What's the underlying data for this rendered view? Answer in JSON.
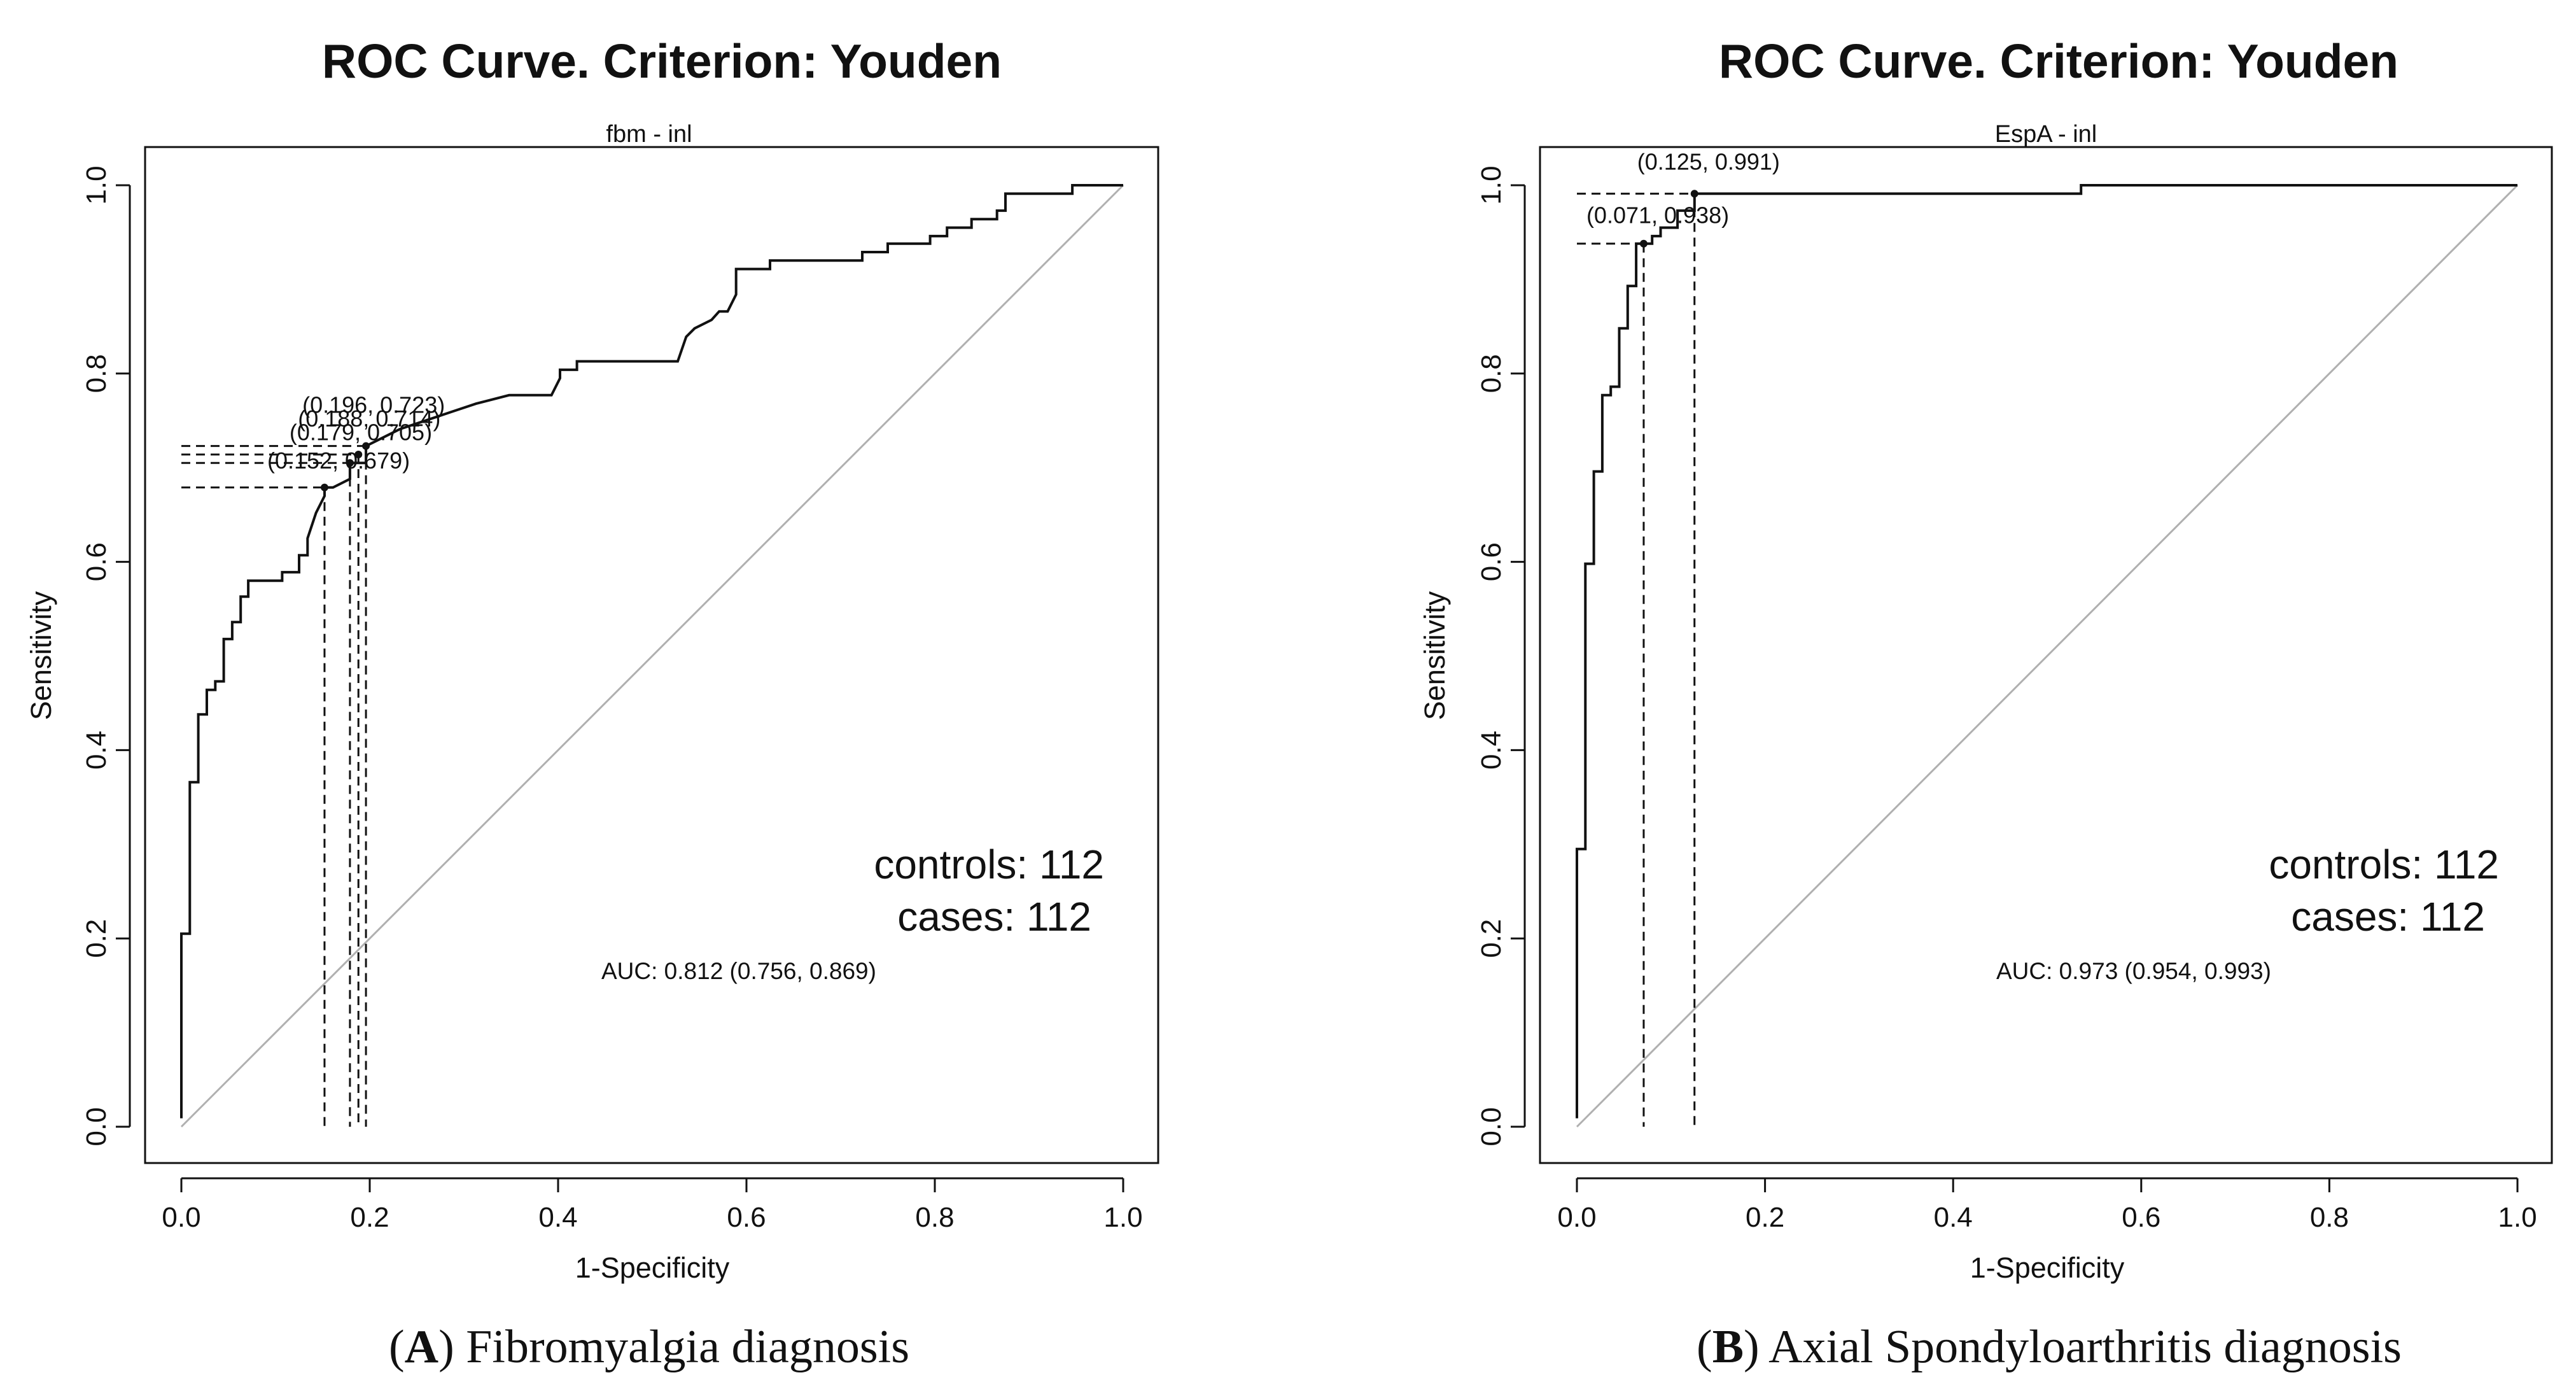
{
  "chart_data": [
    {
      "type": "line",
      "panel": "A",
      "title": "ROC Curve. Criterion: Youden",
      "subtitle": "fbm - inl",
      "xlabel": "1-Specificity",
      "ylabel": "Sensitivity",
      "xlim": [
        0,
        1
      ],
      "ylim": [
        0,
        1
      ],
      "xticks": [
        "0.0",
        "0.2",
        "0.4",
        "0.6",
        "0.8",
        "1.0"
      ],
      "yticks": [
        "0.0",
        "0.2",
        "0.4",
        "0.6",
        "0.8",
        "1.0"
      ],
      "roc": {
        "x": [
          0.0,
          0.0,
          0.009,
          0.009,
          0.018,
          0.018,
          0.027,
          0.027,
          0.036,
          0.036,
          0.045,
          0.045,
          0.054,
          0.054,
          0.063,
          0.063,
          0.071,
          0.071,
          0.107,
          0.107,
          0.125,
          0.125,
          0.134,
          0.134,
          0.143,
          0.152,
          0.152,
          0.161,
          0.179,
          0.179,
          0.196,
          0.196,
          0.214,
          0.232,
          0.259,
          0.286,
          0.313,
          0.348,
          0.348,
          0.393,
          0.402,
          0.402,
          0.42,
          0.42,
          0.527,
          0.536,
          0.545,
          0.563,
          0.571,
          0.58,
          0.589,
          0.589,
          0.625,
          0.625,
          0.723,
          0.723,
          0.75,
          0.75,
          0.795,
          0.795,
          0.813,
          0.813,
          0.839,
          0.839,
          0.866,
          0.866,
          0.875,
          0.875,
          0.946,
          0.946,
          1.0
        ],
        "y": [
          0.009,
          0.205,
          0.205,
          0.366,
          0.366,
          0.438,
          0.438,
          0.464,
          0.464,
          0.473,
          0.473,
          0.518,
          0.518,
          0.536,
          0.536,
          0.563,
          0.563,
          0.58,
          0.58,
          0.589,
          0.589,
          0.607,
          0.607,
          0.625,
          0.652,
          0.67,
          0.679,
          0.679,
          0.688,
          0.705,
          0.705,
          0.723,
          0.732,
          0.741,
          0.75,
          0.759,
          0.768,
          0.777,
          0.777,
          0.777,
          0.795,
          0.804,
          0.804,
          0.813,
          0.813,
          0.839,
          0.848,
          0.857,
          0.866,
          0.866,
          0.884,
          0.911,
          0.911,
          0.92,
          0.92,
          0.929,
          0.929,
          0.938,
          0.938,
          0.946,
          0.946,
          0.955,
          0.955,
          0.964,
          0.964,
          0.973,
          0.973,
          0.991,
          0.991,
          1.0,
          1.0
        ]
      },
      "thresholds": [
        {
          "x": 0.152,
          "y": 0.679,
          "label": "(0.152, 0.679)"
        },
        {
          "x": 0.179,
          "y": 0.705,
          "label": "(0.179, 0.705)"
        },
        {
          "x": 0.188,
          "y": 0.714,
          "label": "(0.188, 0.714)"
        },
        {
          "x": 0.196,
          "y": 0.723,
          "label": "(0.196, 0.723)"
        }
      ],
      "legend": {
        "controls": "controls: 112",
        "cases": "cases: 112"
      },
      "auc": "AUC: 0.812 (0.756, 0.869)",
      "caption": {
        "letter": "A",
        "text": "Fibromyalgia diagnosis"
      }
    },
    {
      "type": "line",
      "panel": "B",
      "title": "ROC Curve. Criterion: Youden",
      "subtitle": "EspA - inl",
      "xlabel": "1-Specificity",
      "ylabel": "Sensitivity",
      "xlim": [
        0,
        1
      ],
      "ylim": [
        0,
        1
      ],
      "xticks": [
        "0.0",
        "0.2",
        "0.4",
        "0.6",
        "0.8",
        "1.0"
      ],
      "yticks": [
        "0.0",
        "0.2",
        "0.4",
        "0.6",
        "0.8",
        "1.0"
      ],
      "roc": {
        "x": [
          0.0,
          0.0,
          0.009,
          0.009,
          0.018,
          0.018,
          0.027,
          0.027,
          0.036,
          0.036,
          0.045,
          0.045,
          0.054,
          0.054,
          0.063,
          0.063,
          0.071,
          0.071,
          0.08,
          0.08,
          0.089,
          0.089,
          0.107,
          0.107,
          0.125,
          0.125,
          0.536,
          0.536,
          1.0
        ],
        "y": [
          0.009,
          0.295,
          0.295,
          0.598,
          0.598,
          0.696,
          0.696,
          0.777,
          0.777,
          0.786,
          0.786,
          0.848,
          0.848,
          0.893,
          0.893,
          0.938,
          0.938,
          0.938,
          0.938,
          0.946,
          0.946,
          0.955,
          0.955,
          0.973,
          0.973,
          0.991,
          0.991,
          1.0,
          1.0
        ]
      },
      "thresholds": [
        {
          "x": 0.071,
          "y": 0.938,
          "label": "(0.071, 0.938)"
        },
        {
          "x": 0.125,
          "y": 0.991,
          "label": "(0.125, 0.991)"
        }
      ],
      "legend": {
        "controls": "controls: 112",
        "cases": "cases: 112"
      },
      "auc": "AUC: 0.973 (0.954, 0.993)",
      "caption": {
        "letter": "B",
        "text": "Axial Spondyloarthritis diagnosis"
      }
    }
  ]
}
